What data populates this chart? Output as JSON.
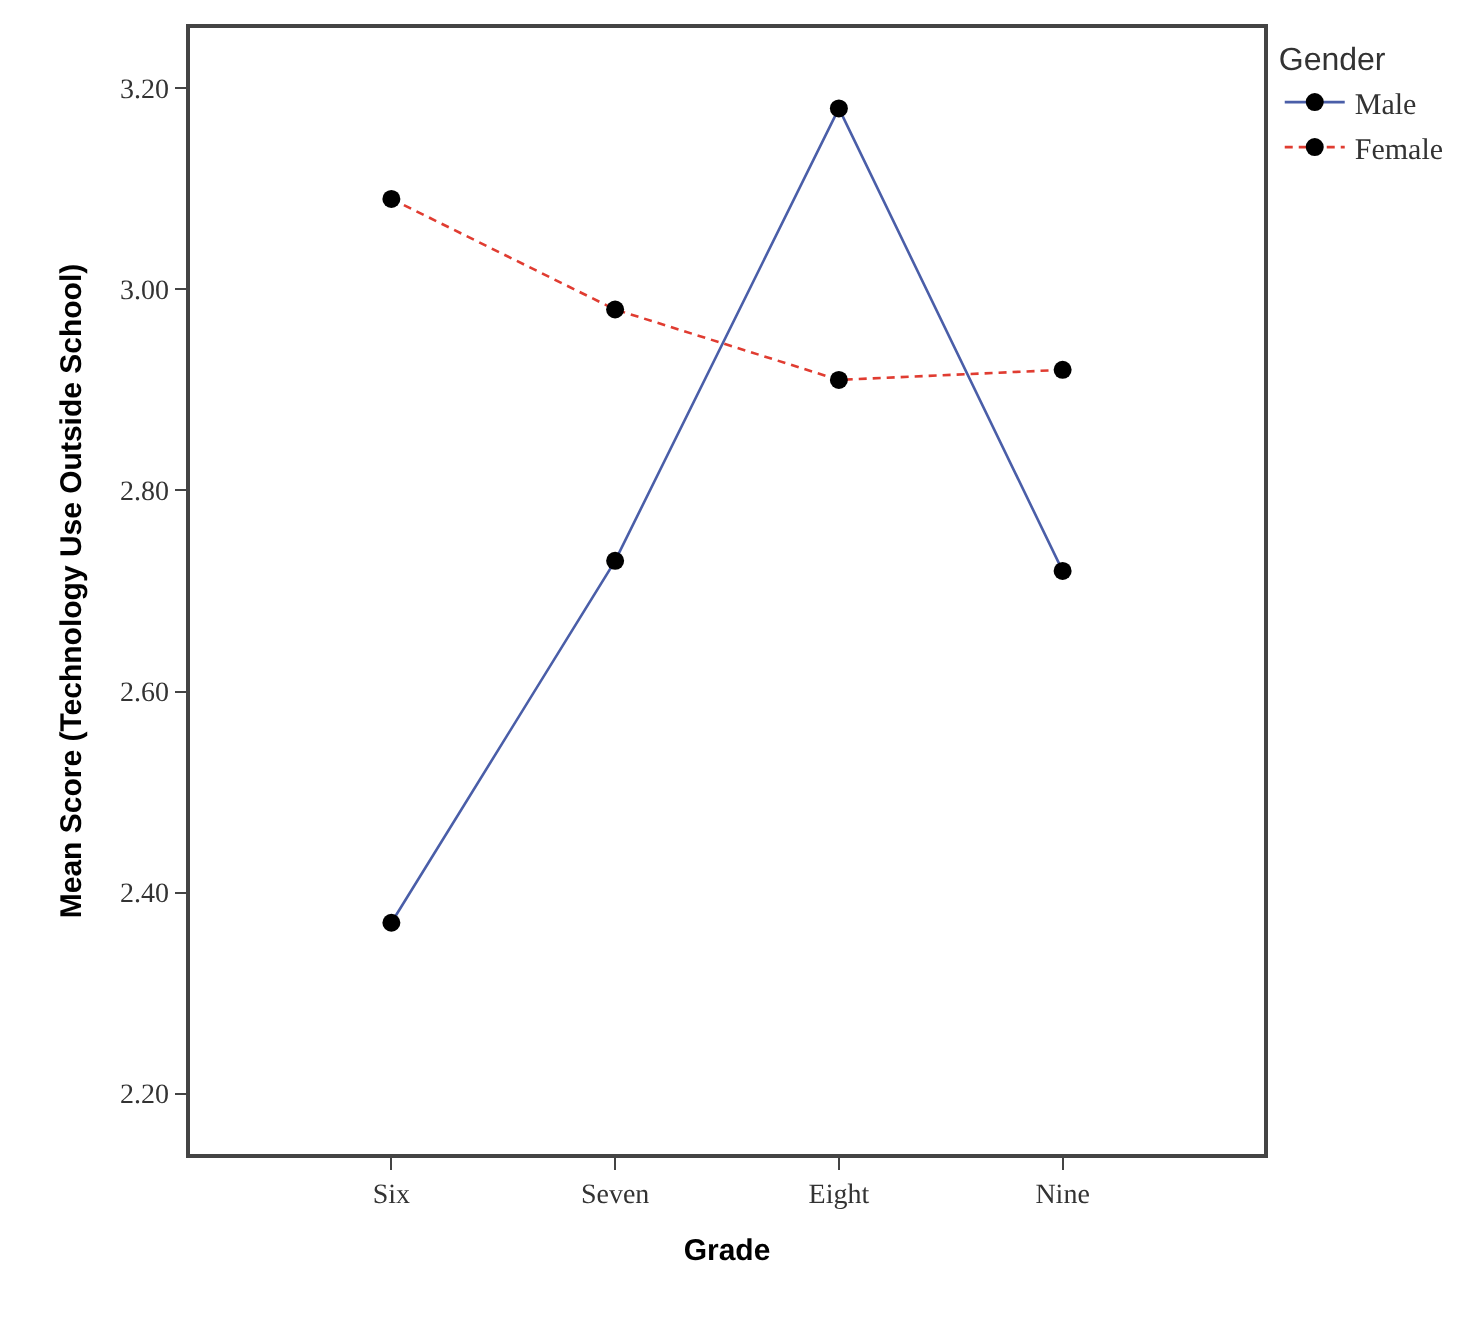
{
  "chart_data": {
    "type": "line",
    "xlabel": "Grade",
    "ylabel": "Mean Score (Technology Use Outside School)",
    "legend_title": "Gender",
    "categories": [
      "Six",
      "Seven",
      "Eight",
      "Nine"
    ],
    "series": [
      {
        "name": "Male",
        "color": "#4a5ea8",
        "line_style": "solid",
        "values": [
          2.37,
          2.73,
          3.18,
          2.72
        ]
      },
      {
        "name": "Female",
        "color": "#e03c31",
        "line_style": "dashed",
        "values": [
          3.09,
          2.98,
          2.91,
          2.92
        ]
      }
    ],
    "ylim": [
      2.14,
      3.26
    ],
    "yticks": [
      {
        "value": 2.2,
        "label": "2.20"
      },
      {
        "value": 2.4,
        "label": "2.40"
      },
      {
        "value": 2.6,
        "label": "2.60"
      },
      {
        "value": 2.8,
        "label": "2.80"
      },
      {
        "value": 3.0,
        "label": "3.00"
      },
      {
        "value": 3.2,
        "label": "3.20"
      }
    ],
    "marker": "circle",
    "grid": false,
    "legend": "top right"
  }
}
